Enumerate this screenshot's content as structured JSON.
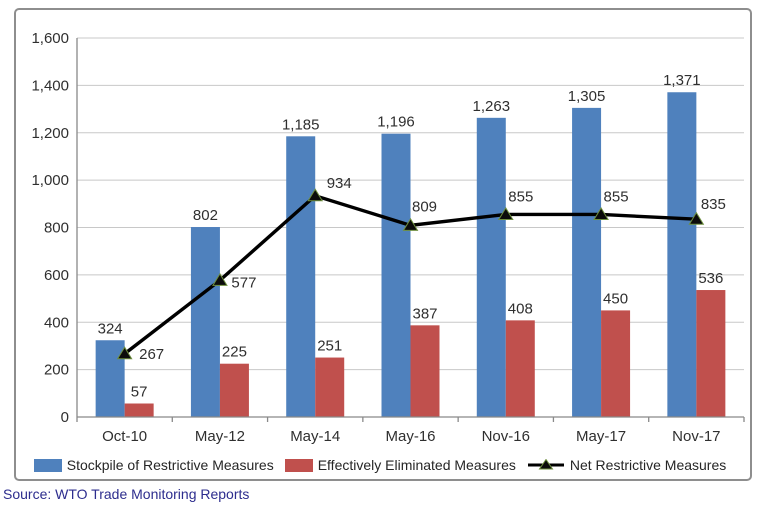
{
  "chart_data": {
    "type": "bar",
    "title": "",
    "categories": [
      "Oct-10",
      "May-12",
      "May-14",
      "May-16",
      "Nov-16",
      "May-17",
      "Nov-17"
    ],
    "series": [
      {
        "name": "Stockpile of Restrictive Measures",
        "kind": "bar",
        "color": "#4f81bd",
        "values": [
          324,
          802,
          1185,
          1196,
          1263,
          1305,
          1371
        ],
        "labels": [
          "324",
          "802",
          "1,185",
          "1,196",
          "1,263",
          "1,305",
          "1,371"
        ]
      },
      {
        "name": "Effectively Eliminated Measures",
        "kind": "bar",
        "color": "#c0504d",
        "values": [
          57,
          225,
          251,
          387,
          408,
          450,
          536
        ],
        "labels": [
          "57",
          "225",
          "251",
          "387",
          "408",
          "450",
          "536"
        ]
      },
      {
        "name": "Net Restrictive Measures",
        "kind": "line",
        "color": "#000000",
        "marker": "triangle",
        "marker_edge_color": "#6e8f3e",
        "values": [
          267,
          577,
          934,
          809,
          855,
          855,
          835
        ],
        "labels": [
          "267",
          "577",
          "934",
          "809",
          "855",
          "855",
          "835"
        ]
      }
    ],
    "y_axis": {
      "min": 0,
      "max": 1600,
      "step": 200,
      "tick_labels": [
        "0",
        "200",
        "400",
        "600",
        "800",
        "1,000",
        "1,200",
        "1,400",
        "1,600"
      ]
    },
    "x_axis": {
      "tick_labels": [
        "Oct-10",
        "May-12",
        "May-14",
        "May-16",
        "Nov-16",
        "May-17",
        "Nov-17"
      ]
    },
    "grid": true,
    "gridline_color": "#c8c8c8",
    "axis_color": "#898989",
    "legend_position": "bottom",
    "ylim": [
      0,
      1600
    ]
  },
  "source": {
    "label": "Source: WTO Trade Monitoring Reports"
  }
}
